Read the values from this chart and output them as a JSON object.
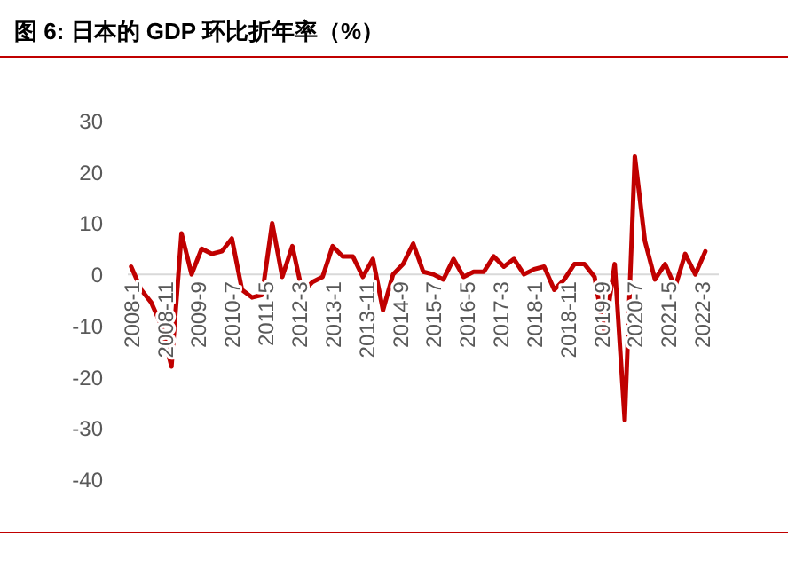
{
  "chart_data": {
    "type": "line",
    "title": "图 6:  日本的 GDP 环比折年率（%）",
    "x": [
      "2008-01",
      "2008-04",
      "2008-07",
      "2008-10",
      "2009-01",
      "2009-04",
      "2009-07",
      "2009-10",
      "2010-01",
      "2010-04",
      "2010-07",
      "2010-10",
      "2011-01",
      "2011-04",
      "2011-07",
      "2011-10",
      "2012-01",
      "2012-04",
      "2012-07",
      "2012-10",
      "2013-01",
      "2013-04",
      "2013-07",
      "2013-10",
      "2014-01",
      "2014-04",
      "2014-07",
      "2014-10",
      "2015-01",
      "2015-04",
      "2015-07",
      "2015-10",
      "2016-01",
      "2016-04",
      "2016-07",
      "2016-10",
      "2017-01",
      "2017-04",
      "2017-07",
      "2017-10",
      "2018-01",
      "2018-04",
      "2018-07",
      "2018-10",
      "2019-01",
      "2019-04",
      "2019-07",
      "2019-10",
      "2020-01",
      "2020-04",
      "2020-07",
      "2020-10",
      "2021-01",
      "2021-04",
      "2021-07",
      "2021-10",
      "2022-01",
      "2022-04"
    ],
    "series": [
      {
        "color": "#c00000",
        "values": [
          1.5,
          -3,
          -5.5,
          -10,
          -18,
          8,
          0,
          5,
          4,
          4.5,
          7,
          -3,
          -4.5,
          -4,
          10,
          -0.5,
          5.5,
          -3.5,
          -1.5,
          -0.5,
          5.5,
          3.5,
          3.5,
          -0.5,
          3,
          -7,
          0,
          2,
          6,
          0.5,
          0,
          -1,
          3,
          -0.5,
          0.5,
          0.5,
          3.5,
          1.5,
          3,
          0,
          1,
          1.5,
          -3,
          -1,
          2,
          2,
          -0.5,
          -11.5,
          2,
          -28.5,
          23,
          6.5,
          -1,
          2,
          -2.5,
          4,
          0,
          4.5
        ]
      }
    ],
    "xlim": [
      "2007-12",
      "2022-08"
    ],
    "xticks": [
      {
        "value": "2008-01",
        "label": "2008-1"
      },
      {
        "value": "2008-11",
        "label": "2008-11"
      },
      {
        "value": "2009-09",
        "label": "2009-9"
      },
      {
        "value": "2010-07",
        "label": "2010-7"
      },
      {
        "value": "2011-05",
        "label": "2011-5"
      },
      {
        "value": "2012-03",
        "label": "2012-3"
      },
      {
        "value": "2013-01",
        "label": "2013-1"
      },
      {
        "value": "2013-11",
        "label": "2013-11"
      },
      {
        "value": "2014-09",
        "label": "2014-9"
      },
      {
        "value": "2015-07",
        "label": "2015-7"
      },
      {
        "value": "2016-05",
        "label": "2016-5"
      },
      {
        "value": "2017-03",
        "label": "2017-3"
      },
      {
        "value": "2018-01",
        "label": "2018-1"
      },
      {
        "value": "2018-11",
        "label": "2018-11"
      },
      {
        "value": "2019-09",
        "label": "2019-9"
      },
      {
        "value": "2020-07",
        "label": "2020-7"
      },
      {
        "value": "2021-05",
        "label": "2021-5"
      },
      {
        "value": "2022-03",
        "label": "2022-3"
      }
    ],
    "ylim": [
      -40,
      30
    ],
    "yticks": [
      -40,
      -30,
      -20,
      -10,
      0,
      10,
      20,
      30
    ]
  }
}
